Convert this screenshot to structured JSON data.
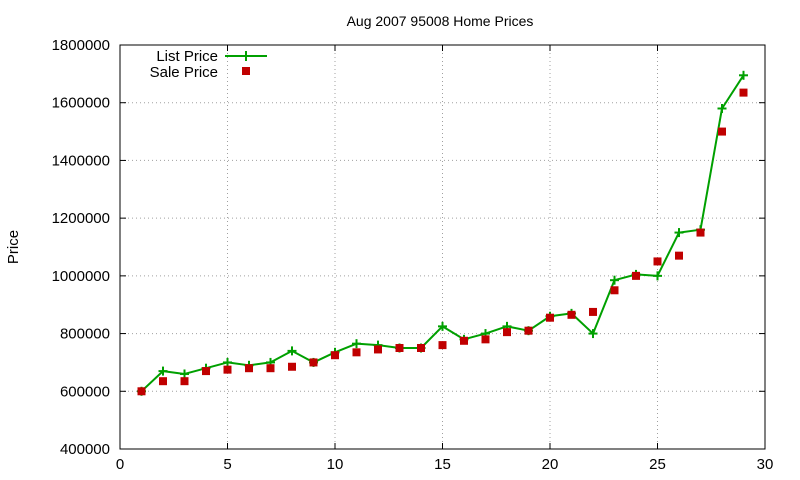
{
  "chart_data": {
    "type": "line",
    "title": "Aug 2007 95008 Home Prices",
    "xlabel": "",
    "ylabel": "Price",
    "xlim": [
      0,
      30
    ],
    "ylim": [
      400000,
      1800000
    ],
    "xticks": [
      0,
      5,
      10,
      15,
      20,
      25,
      30
    ],
    "yticks": [
      400000,
      600000,
      800000,
      1000000,
      1200000,
      1400000,
      1600000,
      1800000
    ],
    "xtick_labels": [
      "0",
      "5",
      "10",
      "15",
      "20",
      "25",
      "30"
    ],
    "ytick_labels": [
      "400000",
      "600000",
      "800000",
      "1000000",
      "1200000",
      "1400000",
      "1600000",
      "1800000"
    ],
    "grid": true,
    "legend_position": "top-left",
    "x": [
      1,
      2,
      3,
      4,
      5,
      6,
      7,
      8,
      9,
      10,
      11,
      12,
      13,
      14,
      15,
      16,
      17,
      18,
      19,
      20,
      21,
      22,
      23,
      24,
      25,
      26,
      27,
      28,
      29
    ],
    "series": [
      {
        "name": "List Price",
        "style": "line-points",
        "color": "#00a000",
        "marker": "plus",
        "values": [
          600000,
          670000,
          660000,
          680000,
          700000,
          690000,
          700000,
          740000,
          700000,
          735000,
          765000,
          760000,
          750000,
          750000,
          825000,
          780000,
          800000,
          825000,
          810000,
          860000,
          870000,
          800000,
          985000,
          1005000,
          1000000,
          1150000,
          1160000,
          1580000,
          1695000
        ]
      },
      {
        "name": "Sale Price",
        "style": "points",
        "color": "#c00000",
        "marker": "square",
        "values": [
          600000,
          635000,
          635000,
          670000,
          675000,
          680000,
          680000,
          685000,
          700000,
          725000,
          735000,
          745000,
          750000,
          750000,
          760000,
          775000,
          780000,
          805000,
          810000,
          855000,
          865000,
          875000,
          950000,
          1000000,
          1050000,
          1070000,
          1150000,
          1500000,
          1635000
        ]
      }
    ]
  }
}
